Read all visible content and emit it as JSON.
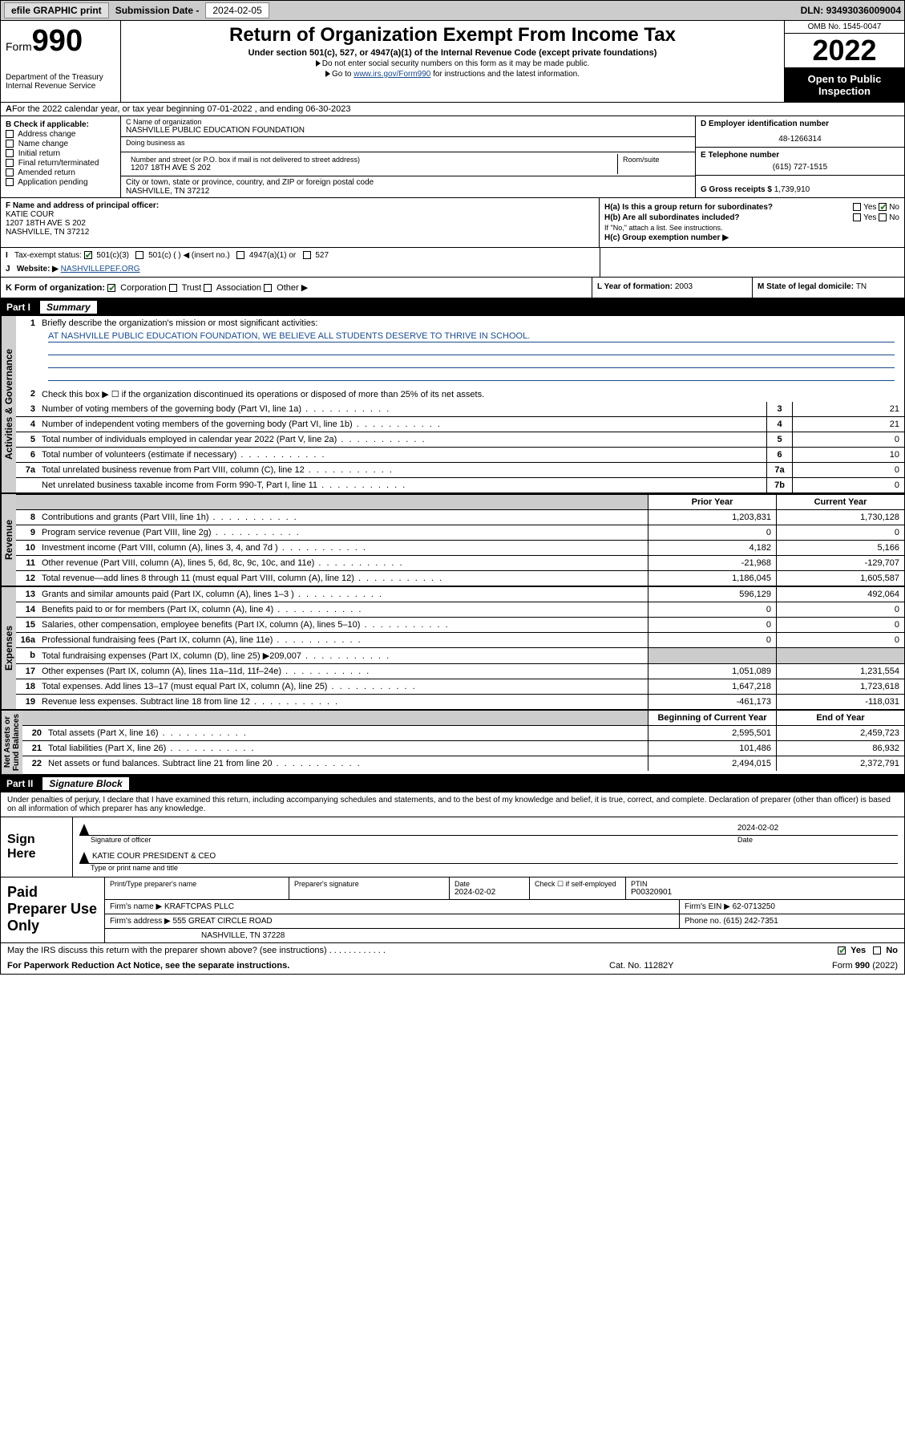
{
  "topbar": {
    "efile": "efile GRAPHIC print",
    "subdate_label": "Submission Date - ",
    "subdate": "2024-02-05",
    "dln_label": "DLN: ",
    "dln": "93493036009004"
  },
  "header": {
    "form_label": "Form",
    "form_num": "990",
    "dept": "Department of the Treasury\nInternal Revenue Service",
    "title": "Return of Organization Exempt From Income Tax",
    "sub": "Under section 501(c), 527, or 4947(a)(1) of the Internal Revenue Code (except private foundations)",
    "note1": "Do not enter social security numbers on this form as it may be made public.",
    "note2_pre": "Go to ",
    "note2_link": "www.irs.gov/Form990",
    "note2_post": " for instructions and the latest information.",
    "omb": "OMB No. 1545-0047",
    "year": "2022",
    "inspect": "Open to Public Inspection"
  },
  "lineA": "For the 2022 calendar year, or tax year beginning 07-01-2022   , and ending 06-30-2023",
  "boxB": {
    "label": "B Check if applicable:",
    "items": [
      "Address change",
      "Name change",
      "Initial return",
      "Final return/terminated",
      "Amended return",
      "Application pending"
    ]
  },
  "boxC": {
    "name_lab": "C Name of organization",
    "name": "NASHVILLE PUBLIC EDUCATION FOUNDATION",
    "dba_lab": "Doing business as",
    "addr_lab": "Number and street (or P.O. box if mail is not delivered to street address)",
    "suite_lab": "Room/suite",
    "addr": "1207 18TH AVE S 202",
    "city_lab": "City or town, state or province, country, and ZIP or foreign postal code",
    "city": "NASHVILLE, TN  37212"
  },
  "boxD": {
    "ein_lab": "D Employer identification number",
    "ein": "48-1266314",
    "tel_lab": "E Telephone number",
    "tel": "(615) 727-1515",
    "gross_lab": "G Gross receipts $ ",
    "gross": "1,739,910"
  },
  "boxF": {
    "lab": "F Name and address of principal officer:",
    "name": "KATIE COUR",
    "addr1": "1207 18TH AVE S 202",
    "addr2": "NASHVILLE, TN  37212"
  },
  "boxH": {
    "a": "H(a)  Is this a group return for subordinates?",
    "b": "H(b)  Are all subordinates included?",
    "bnote": "If \"No,\" attach a list. See instructions.",
    "c": "H(c)  Group exemption number ▶",
    "yes": "Yes",
    "no": "No"
  },
  "boxI": {
    "lab": "Tax-exempt status:",
    "c3": "501(c)(3)",
    "c": "501(c) (   ) ◀ (insert no.)",
    "a1": "4947(a)(1) or",
    "s527": "527"
  },
  "boxJ": {
    "lab": "Website: ▶ ",
    "val": "NASHVILLEPEF.ORG"
  },
  "boxK": {
    "lab": "K Form of organization:",
    "corp": "Corporation",
    "trust": "Trust",
    "assoc": "Association",
    "other": "Other ▶"
  },
  "boxL": {
    "lab": "L Year of formation: ",
    "val": "2003"
  },
  "boxM": {
    "lab": "M State of legal domicile: ",
    "val": "TN"
  },
  "part1": {
    "num": "Part I",
    "title": "Summary"
  },
  "summary": {
    "q1": "Briefly describe the organization's mission or most significant activities:",
    "mission": "AT NASHVILLE PUBLIC EDUCATION FOUNDATION, WE BELIEVE ALL STUDENTS DESERVE TO THRIVE IN SCHOOL.",
    "q2": "Check this box ▶ ☐  if the organization discontinued its operations or disposed of more than 25% of its net assets.",
    "lines": [
      {
        "n": "3",
        "t": "Number of voting members of the governing body (Part VI, line 1a)",
        "box": "3",
        "v": "21"
      },
      {
        "n": "4",
        "t": "Number of independent voting members of the governing body (Part VI, line 1b)",
        "box": "4",
        "v": "21"
      },
      {
        "n": "5",
        "t": "Total number of individuals employed in calendar year 2022 (Part V, line 2a)",
        "box": "5",
        "v": "0"
      },
      {
        "n": "6",
        "t": "Total number of volunteers (estimate if necessary)",
        "box": "6",
        "v": "10"
      },
      {
        "n": "7a",
        "t": "Total unrelated business revenue from Part VIII, column (C), line 12",
        "box": "7a",
        "v": "0"
      },
      {
        "n": "",
        "t": "Net unrelated business taxable income from Form 990-T, Part I, line 11",
        "box": "7b",
        "v": "0"
      }
    ],
    "hdr_prior": "Prior Year",
    "hdr_curr": "Current Year",
    "rev": [
      {
        "n": "8",
        "t": "Contributions and grants (Part VIII, line 1h)",
        "p": "1,203,831",
        "c": "1,730,128"
      },
      {
        "n": "9",
        "t": "Program service revenue (Part VIII, line 2g)",
        "p": "0",
        "c": "0"
      },
      {
        "n": "10",
        "t": "Investment income (Part VIII, column (A), lines 3, 4, and 7d )",
        "p": "4,182",
        "c": "5,166"
      },
      {
        "n": "11",
        "t": "Other revenue (Part VIII, column (A), lines 5, 6d, 8c, 9c, 10c, and 11e)",
        "p": "-21,968",
        "c": "-129,707"
      },
      {
        "n": "12",
        "t": "Total revenue—add lines 8 through 11 (must equal Part VIII, column (A), line 12)",
        "p": "1,186,045",
        "c": "1,605,587"
      }
    ],
    "exp": [
      {
        "n": "13",
        "t": "Grants and similar amounts paid (Part IX, column (A), lines 1–3 )",
        "p": "596,129",
        "c": "492,064"
      },
      {
        "n": "14",
        "t": "Benefits paid to or for members (Part IX, column (A), line 4)",
        "p": "0",
        "c": "0"
      },
      {
        "n": "15",
        "t": "Salaries, other compensation, employee benefits (Part IX, column (A), lines 5–10)",
        "p": "0",
        "c": "0"
      },
      {
        "n": "16a",
        "t": "Professional fundraising fees (Part IX, column (A), line 11e)",
        "p": "0",
        "c": "0"
      },
      {
        "n": "b",
        "t": "Total fundraising expenses (Part IX, column (D), line 25) ▶209,007",
        "p": "shade",
        "c": "shade"
      },
      {
        "n": "17",
        "t": "Other expenses (Part IX, column (A), lines 11a–11d, 11f–24e)",
        "p": "1,051,089",
        "c": "1,231,554"
      },
      {
        "n": "18",
        "t": "Total expenses. Add lines 13–17 (must equal Part IX, column (A), line 25)",
        "p": "1,647,218",
        "c": "1,723,618"
      },
      {
        "n": "19",
        "t": "Revenue less expenses. Subtract line 18 from line 12",
        "p": "-461,173",
        "c": "-118,031"
      }
    ],
    "hdr_beg": "Beginning of Current Year",
    "hdr_end": "End of Year",
    "net": [
      {
        "n": "20",
        "t": "Total assets (Part X, line 16)",
        "p": "2,595,501",
        "c": "2,459,723"
      },
      {
        "n": "21",
        "t": "Total liabilities (Part X, line 26)",
        "p": "101,486",
        "c": "86,932"
      },
      {
        "n": "22",
        "t": "Net assets or fund balances. Subtract line 21 from line 20",
        "p": "2,494,015",
        "c": "2,372,791"
      }
    ]
  },
  "tabs": {
    "ag": "Activities & Governance",
    "rev": "Revenue",
    "exp": "Expenses",
    "net": "Net Assets or\nFund Balances"
  },
  "part2": {
    "num": "Part II",
    "title": "Signature Block"
  },
  "sig": {
    "intro": "Under penalties of perjury, I declare that I have examined this return, including accompanying schedules and statements, and to the best of my knowledge and belief, it is true, correct, and complete. Declaration of preparer (other than officer) is based on all information of which preparer has any knowledge.",
    "here": "Sign Here",
    "sig_lab": "Signature of officer",
    "date_lab": "Date",
    "date": "2024-02-02",
    "name": "KATIE COUR  PRESIDENT & CEO",
    "name_lab": "Type or print name and title"
  },
  "prep": {
    "title": "Paid Preparer Use Only",
    "pt_lab": "Print/Type preparer's name",
    "ps_lab": "Preparer's signature",
    "d_lab": "Date",
    "d": "2024-02-02",
    "chk_lab": "Check ☐ if self-employed",
    "ptin_lab": "PTIN",
    "ptin": "P00320901",
    "firm_lab": "Firm's name    ▶ ",
    "firm": "KRAFTCPAS PLLC",
    "ein_lab": "Firm's EIN ▶ ",
    "ein": "62-0713250",
    "addr_lab": "Firm's address ▶ ",
    "addr1": "555 GREAT CIRCLE ROAD",
    "addr2": "NASHVILLE, TN  37228",
    "ph_lab": "Phone no. ",
    "ph": "(615) 242-7351"
  },
  "may": "May the IRS discuss this return with the preparer shown above? (see instructions)   .   .   .   .   .   .   .   .   .   .   .   .",
  "footer": {
    "l": "For Paperwork Reduction Act Notice, see the separate instructions.",
    "m": "Cat. No. 11282Y",
    "r": "Form 990 (2022)"
  }
}
